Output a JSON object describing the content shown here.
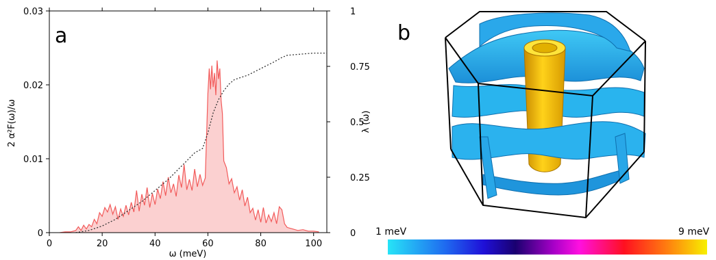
{
  "panels": {
    "a": "a",
    "b": "b"
  },
  "chart_data": [
    {
      "type": "area",
      "xlabel": "ω (meV)",
      "ylabel": "2 α²F(ω)/ω",
      "y2label": "λ (ω)",
      "xlim": [
        0,
        105
      ],
      "ylim": [
        0,
        0.03
      ],
      "y2lim": [
        0,
        1
      ],
      "xticks": [
        "0",
        "20",
        "40",
        "60",
        "80",
        "100"
      ],
      "yticks": [
        "0",
        "0.01",
        "0.02",
        "0.03"
      ],
      "y2ticks": [
        "0",
        "0.25",
        "0.5",
        "0.75",
        "1"
      ],
      "grid": false,
      "series": [
        {
          "style": "filled line",
          "color": "#f25a5a",
          "fill": "#fbd0d0",
          "x": [
            4,
            6,
            8,
            10,
            11,
            12,
            13,
            14,
            15,
            16,
            17,
            18,
            19,
            20,
            21,
            22,
            23,
            24,
            25,
            26,
            27,
            28,
            29,
            30,
            31,
            32,
            33,
            34,
            35,
            36,
            37,
            38,
            39,
            40,
            41,
            42,
            43,
            44,
            45,
            46,
            47,
            48,
            49,
            50,
            51,
            52,
            53,
            54,
            55,
            56,
            57,
            58,
            59,
            60,
            60.5,
            61,
            61.5,
            62,
            62.5,
            63,
            63.5,
            64,
            64.5,
            65,
            65.5,
            66,
            67,
            68,
            69,
            70,
            71,
            72,
            73,
            74,
            75,
            76,
            77,
            78,
            79,
            80,
            81,
            82,
            83,
            84,
            85,
            86,
            87,
            88,
            89,
            90,
            92,
            94,
            96,
            98,
            100,
            102
          ],
          "y": [
            0,
            0.0001,
            0.0001,
            0.0003,
            0.0008,
            0.0003,
            0.001,
            0.0005,
            0.0011,
            0.0008,
            0.0018,
            0.0012,
            0.0027,
            0.0022,
            0.0034,
            0.0028,
            0.0038,
            0.0025,
            0.0035,
            0.0018,
            0.0032,
            0.0022,
            0.0037,
            0.0024,
            0.0041,
            0.0028,
            0.0057,
            0.0029,
            0.0052,
            0.0037,
            0.0061,
            0.0034,
            0.0053,
            0.0038,
            0.0059,
            0.0046,
            0.0069,
            0.005,
            0.0075,
            0.0054,
            0.0066,
            0.0049,
            0.0078,
            0.0061,
            0.0092,
            0.0058,
            0.0072,
            0.0057,
            0.0086,
            0.0062,
            0.0079,
            0.0064,
            0.0074,
            0.0188,
            0.0222,
            0.0194,
            0.0226,
            0.0197,
            0.0216,
            0.0186,
            0.0233,
            0.0208,
            0.0222,
            0.0179,
            0.0161,
            0.0097,
            0.0088,
            0.0066,
            0.0073,
            0.0054,
            0.0062,
            0.0044,
            0.0058,
            0.0036,
            0.0048,
            0.0027,
            0.0033,
            0.0017,
            0.0031,
            0.0014,
            0.0034,
            0.0013,
            0.0024,
            0.0015,
            0.0027,
            0.0012,
            0.0035,
            0.0031,
            0.0012,
            0.0007,
            0.0005,
            0.0003,
            0.0004,
            0.0002,
            0.0002,
            0.0001
          ]
        },
        {
          "style": "dotted line",
          "axis": "y2",
          "color": "#333333",
          "x": [
            10,
            15,
            20,
            25,
            30,
            35,
            40,
            45,
            50,
            55,
            58,
            60,
            62,
            64,
            66,
            68,
            70,
            75,
            80,
            85,
            88,
            90,
            95,
            100,
            105
          ],
          "y": [
            0,
            0.01,
            0.03,
            0.06,
            0.1,
            0.14,
            0.19,
            0.24,
            0.3,
            0.36,
            0.38,
            0.45,
            0.54,
            0.6,
            0.64,
            0.67,
            0.69,
            0.71,
            0.74,
            0.77,
            0.79,
            0.8,
            0.805,
            0.81,
            0.81
          ]
        }
      ]
    },
    {
      "type": "other",
      "description_visible": "3D Fermi surface rendering colored by gap",
      "colorbar": {
        "min_label": "1 meV",
        "max_label": "9 meV",
        "colors": [
          "#27e4f7",
          "#1f3fe0",
          "#1a0088",
          "#c800d8",
          "#ff2020",
          "#ff8000",
          "#f5f500"
        ]
      }
    }
  ]
}
